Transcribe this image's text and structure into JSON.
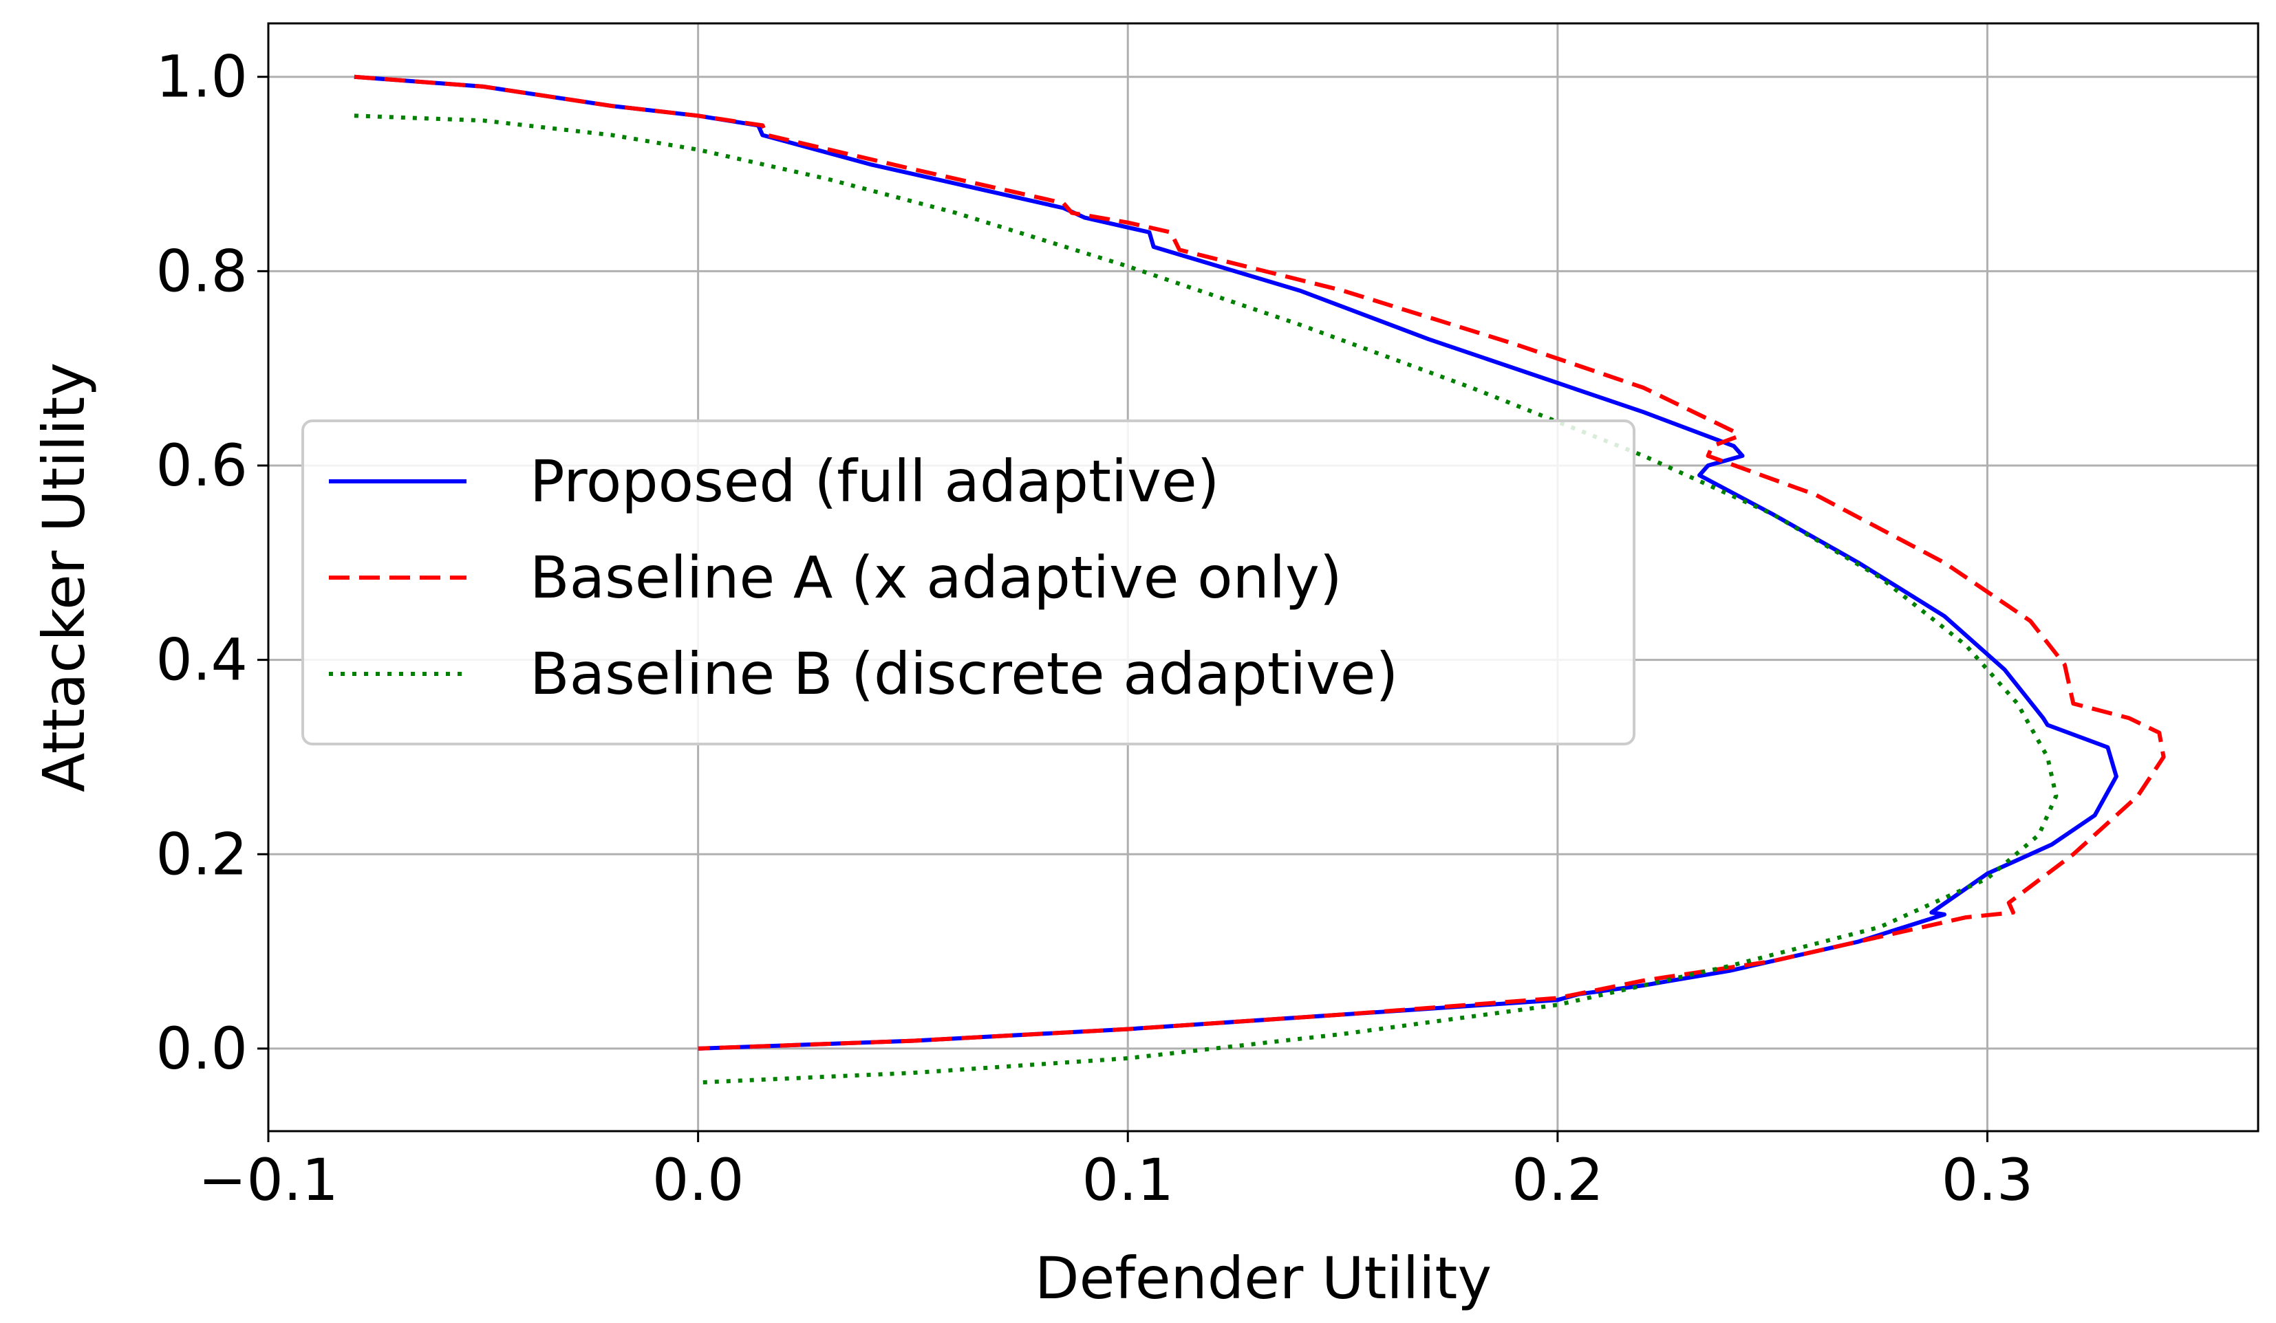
{
  "chart_data": {
    "type": "line",
    "title": "",
    "xlabel": "Defender Utility",
    "ylabel": "Attacker Utility",
    "xlim": [
      -0.1,
      0.363
    ],
    "ylim": [
      -0.085,
      1.055
    ],
    "xticks": [
      -0.1,
      0.0,
      0.1,
      0.2,
      0.3
    ],
    "xtick_labels": [
      "−0.1",
      "0.0",
      "0.1",
      "0.2",
      "0.3"
    ],
    "yticks": [
      0.0,
      0.2,
      0.4,
      0.6,
      0.8,
      1.0
    ],
    "ytick_labels": [
      "0.0",
      "0.2",
      "0.4",
      "0.6",
      "0.8",
      "1.0"
    ],
    "grid": true,
    "legend_position": "center-left",
    "series": [
      {
        "name": "Proposed (full adaptive)",
        "color": "#0000ff",
        "style": "solid",
        "x": [
          -0.08,
          -0.05,
          -0.02,
          0.0,
          0.014,
          0.015,
          0.04,
          0.07,
          0.085,
          0.09,
          0.105,
          0.106,
          0.14,
          0.17,
          0.2,
          0.22,
          0.241,
          0.243,
          0.235,
          0.233,
          0.25,
          0.27,
          0.29,
          0.304,
          0.313,
          0.314,
          0.328,
          0.33,
          0.325,
          0.315,
          0.3,
          0.287,
          0.29,
          0.27,
          0.24,
          0.22,
          0.205,
          0.2,
          0.15,
          0.1,
          0.05,
          0.0
        ],
        "y": [
          1.0,
          0.99,
          0.97,
          0.96,
          0.95,
          0.94,
          0.91,
          0.88,
          0.865,
          0.855,
          0.84,
          0.825,
          0.78,
          0.73,
          0.685,
          0.655,
          0.62,
          0.61,
          0.6,
          0.59,
          0.55,
          0.5,
          0.445,
          0.39,
          0.34,
          0.333,
          0.31,
          0.28,
          0.24,
          0.21,
          0.18,
          0.14,
          0.138,
          0.11,
          0.08,
          0.065,
          0.056,
          0.05,
          0.035,
          0.02,
          0.008,
          0.0
        ]
      },
      {
        "name": "Baseline A (x adaptive only)",
        "color": "#ff0000",
        "style": "dashed",
        "x": [
          -0.08,
          -0.05,
          -0.02,
          0.0,
          0.015,
          0.016,
          0.05,
          0.085,
          0.087,
          0.1,
          0.11,
          0.112,
          0.15,
          0.19,
          0.22,
          0.241,
          0.242,
          0.236,
          0.235,
          0.26,
          0.29,
          0.31,
          0.318,
          0.32,
          0.333,
          0.34,
          0.341,
          0.335,
          0.32,
          0.305,
          0.306,
          0.295,
          0.285,
          0.25,
          0.22,
          0.2,
          0.15,
          0.1,
          0.05,
          0.0
        ],
        "y": [
          1.0,
          0.99,
          0.97,
          0.96,
          0.95,
          0.94,
          0.905,
          0.87,
          0.86,
          0.85,
          0.84,
          0.822,
          0.78,
          0.725,
          0.68,
          0.635,
          0.63,
          0.62,
          0.61,
          0.57,
          0.5,
          0.44,
          0.395,
          0.355,
          0.34,
          0.325,
          0.3,
          0.26,
          0.2,
          0.15,
          0.14,
          0.135,
          0.125,
          0.09,
          0.07,
          0.052,
          0.035,
          0.02,
          0.008,
          0.0
        ]
      },
      {
        "name": "Baseline B (discrete adaptive)",
        "color": "#008000",
        "style": "dotted",
        "x": [
          -0.08,
          -0.05,
          -0.02,
          0.0,
          0.03,
          0.06,
          0.1,
          0.14,
          0.18,
          0.22,
          0.25,
          0.275,
          0.295,
          0.307,
          0.314,
          0.316,
          0.312,
          0.3,
          0.275,
          0.24,
          0.2,
          0.15,
          0.1,
          0.05,
          0.0
        ],
        "y": [
          0.96,
          0.955,
          0.94,
          0.925,
          0.895,
          0.86,
          0.805,
          0.745,
          0.68,
          0.61,
          0.55,
          0.485,
          0.415,
          0.355,
          0.3,
          0.26,
          0.22,
          0.175,
          0.125,
          0.085,
          0.045,
          0.015,
          -0.01,
          -0.025,
          -0.035
        ]
      }
    ]
  }
}
